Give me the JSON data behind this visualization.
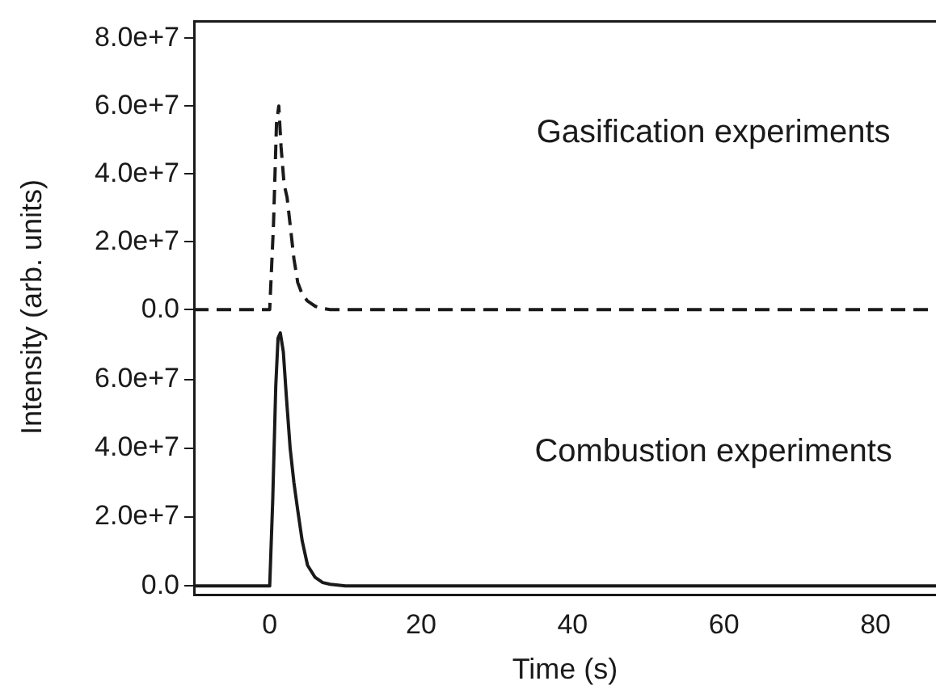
{
  "chart_data": [
    {
      "type": "line",
      "ylabel": "Intensity (arb. units)",
      "xlim": [
        -10,
        88
      ],
      "ylim": [
        -2000000,
        85000000
      ],
      "yticks": [
        {
          "value": 0,
          "label": "0.0"
        },
        {
          "value": 20000000,
          "label": "2.0e+7"
        },
        {
          "value": 40000000,
          "label": "4.0e+7"
        },
        {
          "value": 60000000,
          "label": "6.0e+7"
        },
        {
          "value": 80000000,
          "label": "8.0e+7"
        }
      ],
      "tick_labels": "y",
      "grid": false,
      "legend": false,
      "marker": "none",
      "line_style": "dashed",
      "annotations": [
        "Gasification experiments"
      ],
      "series": [
        {
          "color": "#1a1a1a",
          "x": [
            -10,
            -5,
            0,
            0.5,
            0.9,
            1.2,
            1.5,
            1.9,
            2.3,
            2.7,
            3.2,
            3.7,
            4.3,
            5,
            6,
            7,
            8,
            10,
            20,
            40,
            60,
            80,
            88
          ],
          "values": [
            0,
            0,
            0,
            25000000,
            55000000,
            60000000,
            48000000,
            37000000,
            33000000,
            25000000,
            15000000,
            8000000,
            4500000,
            2500000,
            1000000,
            300000,
            0,
            0,
            0,
            0,
            0,
            0,
            0
          ]
        }
      ]
    },
    {
      "type": "line",
      "xlabel": "Time (s)",
      "xlim": [
        -10,
        88
      ],
      "ylim": [
        -2500000,
        80000000
      ],
      "xticks": [
        0,
        20,
        40,
        60,
        80
      ],
      "yticks": [
        {
          "value": 0,
          "label": "0.0"
        },
        {
          "value": 20000000,
          "label": "2.0e+7"
        },
        {
          "value": 40000000,
          "label": "4.0e+7"
        },
        {
          "value": 60000000,
          "label": "6.0e+7"
        }
      ],
      "grid": false,
      "legend": false,
      "marker": "none",
      "line_style": "solid",
      "annotations": [
        "Combustion experiments"
      ],
      "series": [
        {
          "color": "#1a1a1a",
          "x": [
            -10,
            -5,
            0,
            0.4,
            0.8,
            1.1,
            1.4,
            1.8,
            2.2,
            2.7,
            3.2,
            3.7,
            4.3,
            5,
            6,
            7,
            8,
            10,
            20,
            40,
            60,
            80,
            88
          ],
          "values": [
            0,
            0,
            0,
            25000000,
            58000000,
            72000000,
            73500000,
            68000000,
            55000000,
            40000000,
            30000000,
            22000000,
            13000000,
            6000000,
            2500000,
            1000000,
            500000,
            0,
            0,
            0,
            0,
            0,
            0
          ]
        }
      ]
    }
  ]
}
